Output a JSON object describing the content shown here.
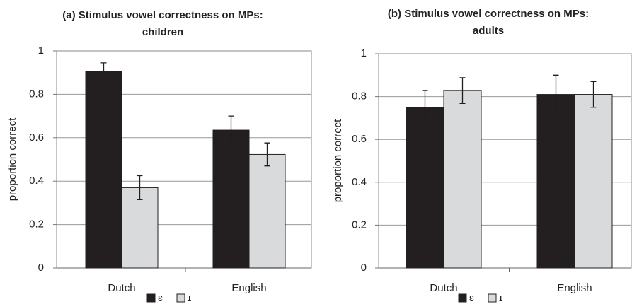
{
  "chart_data": [
    {
      "type": "bar",
      "title": [
        "(a) Stimulus vowel correctness on MPs:",
        "children"
      ],
      "y_label": "proportion correct",
      "categories": [
        "Dutch",
        "English"
      ],
      "series": [
        {
          "name": "ɛ",
          "color": "#231f20",
          "values": [
            0.905,
            0.635
          ],
          "errors": [
            0.04,
            0.065
          ]
        },
        {
          "name": "ɪ",
          "color": "#d9dadb",
          "values": [
            0.37,
            0.523
          ],
          "errors": [
            0.055,
            0.053
          ]
        }
      ],
      "ylim": [
        0,
        1
      ],
      "yticks": [
        0,
        0.2,
        0.4,
        0.6,
        0.8,
        1
      ],
      "grid": true,
      "legend": "bottom"
    },
    {
      "type": "bar",
      "title": [
        "(b) Stimulus vowel correctness on MPs:",
        "adults"
      ],
      "y_label": "proportion correct",
      "categories": [
        "Dutch",
        "English"
      ],
      "series": [
        {
          "name": "ɛ",
          "color": "#231f20",
          "values": [
            0.75,
            0.81
          ],
          "errors": [
            0.078,
            0.09
          ]
        },
        {
          "name": "ɪ",
          "color": "#d9dadb",
          "values": [
            0.828,
            0.81
          ],
          "errors": [
            0.06,
            0.06
          ]
        }
      ],
      "ylim": [
        0,
        1
      ],
      "yticks": [
        0,
        0.2,
        0.4,
        0.6,
        0.8,
        1
      ],
      "grid": true,
      "legend": "bottom"
    }
  ]
}
